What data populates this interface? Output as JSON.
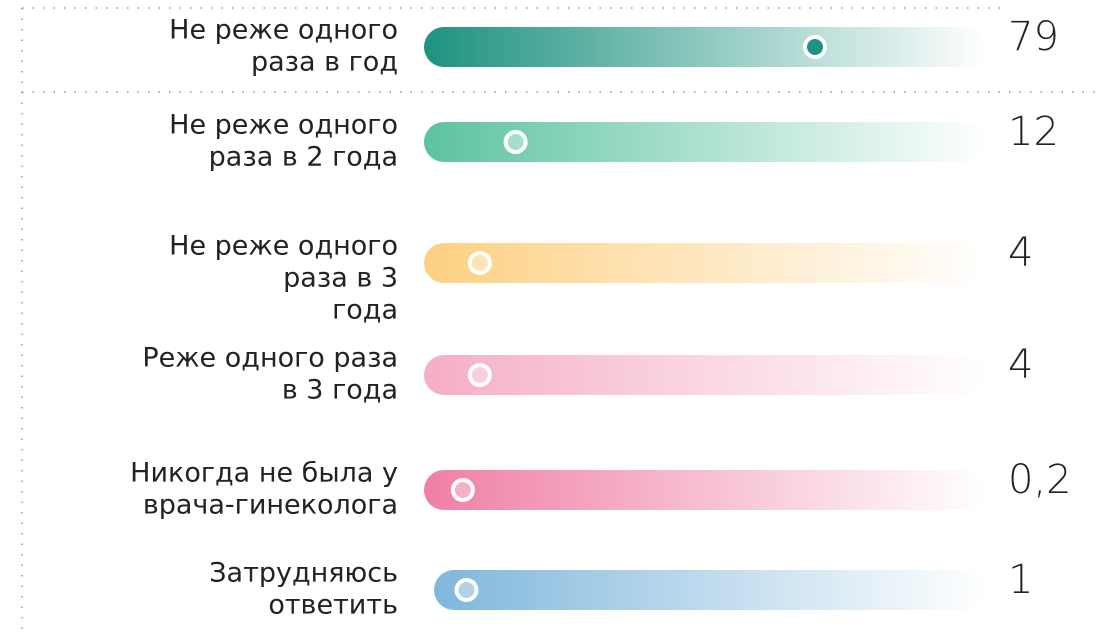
{
  "chart_data": {
    "type": "bar",
    "categories": [
      [
        "Не реже одного",
        "раза в год"
      ],
      [
        "Не реже одного",
        "раза в 2 года"
      ],
      [
        "Не реже одного",
        "раза в 3",
        "года"
      ],
      [
        "Реже одного раза",
        "в 3 года"
      ],
      [
        "Никогда не была у",
        "врача-гинеколога"
      ],
      [
        "Затрудняюсь",
        "ответить"
      ]
    ],
    "values": [
      79,
      12,
      4,
      4,
      0.2,
      1
    ],
    "value_labels": [
      "79",
      "12",
      "4",
      "4",
      "0,2",
      "1"
    ],
    "colors": [
      "#1e9280",
      "#5cc3a2",
      "#fdd082",
      "#f5aec6",
      "#ef7fa3",
      "#7fb7dc"
    ]
  }
}
